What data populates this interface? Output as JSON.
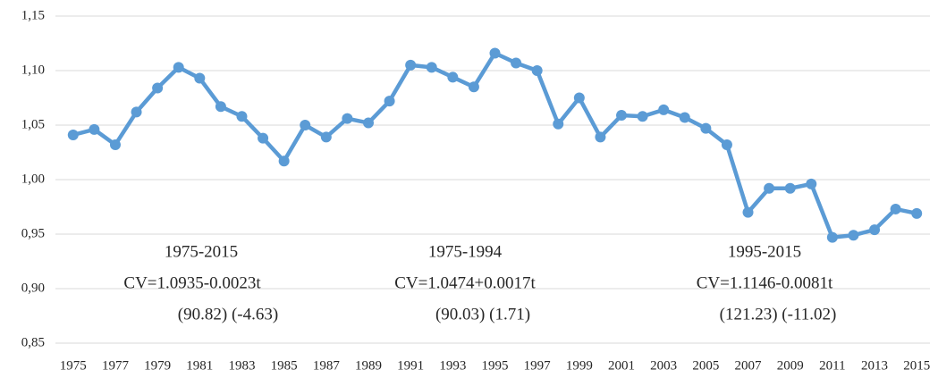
{
  "chart_data": {
    "type": "line",
    "categories": [
      "1975",
      null,
      "1977",
      null,
      "1979",
      null,
      "1981",
      null,
      "1983",
      null,
      "1985",
      null,
      "1987",
      null,
      "1989",
      null,
      "1991",
      null,
      "1993",
      null,
      "1995",
      null,
      "1997",
      null,
      "1999",
      null,
      "2001",
      null,
      "2003",
      null,
      "2005",
      null,
      "2007",
      null,
      "2009",
      null,
      "2011",
      null,
      "2013",
      null,
      "2015"
    ],
    "values": [
      1.041,
      1.046,
      1.032,
      1.062,
      1.084,
      1.103,
      1.093,
      1.067,
      1.058,
      1.038,
      1.017,
      1.05,
      1.039,
      1.056,
      1.052,
      1.072,
      1.105,
      1.103,
      1.094,
      1.085,
      1.116,
      1.107,
      1.1,
      1.051,
      1.075,
      1.039,
      1.059,
      1.058,
      1.064,
      1.057,
      1.047,
      1.032,
      0.97,
      0.992,
      0.992,
      0.996,
      0.947,
      0.949,
      0.954,
      0.973,
      0.969
    ],
    "color": "#5b9bd5",
    "ylim": [
      0.85,
      1.15
    ],
    "yticks": [
      {
        "value": 0.85,
        "label": "0,85"
      },
      {
        "value": 0.9,
        "label": "0,90"
      },
      {
        "value": 0.95,
        "label": "0,95"
      },
      {
        "value": 1.0,
        "label": "1,00"
      },
      {
        "value": 1.05,
        "label": "1,05"
      },
      {
        "value": 1.1,
        "label": "1,10"
      },
      {
        "value": 1.15,
        "label": "1,15"
      }
    ],
    "grid": true,
    "annotations": [
      {
        "lines": [
          "1975-2015",
          "CV=1.0935-0.0023t",
          "(90.82) (-4.63)"
        ]
      },
      {
        "lines": [
          "1975-1994",
          "CV=1.0474+0.0017t",
          "(90.03) (1.71)"
        ]
      },
      {
        "lines": [
          "1995-2015",
          "CV=1.1146-0.0081t",
          "(121.23) (-11.02)"
        ]
      }
    ]
  }
}
